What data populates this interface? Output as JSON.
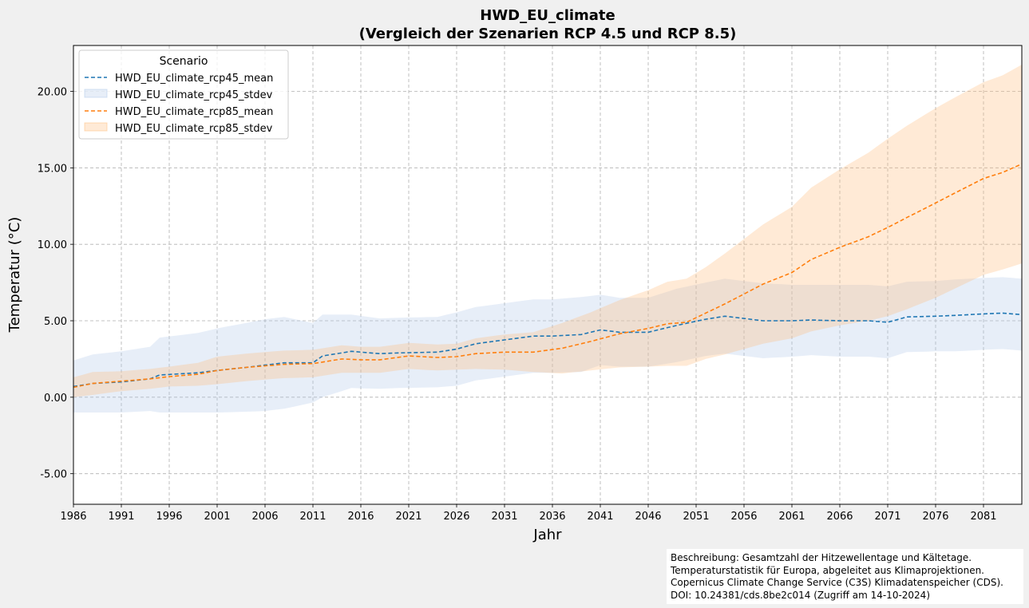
{
  "chart_data": {
    "type": "line",
    "title": "HWD_EU_climate",
    "subtitle": "(Vergleich der Szenarien RCP 4.5 und RCP 8.5)",
    "xlabel": "Jahr",
    "ylabel": "Temperatur (°C)",
    "xlim": [
      1986,
      2085
    ],
    "ylim": [
      -7,
      23
    ],
    "grid": true,
    "x_ticks": [
      1986,
      1991,
      1996,
      2001,
      2006,
      2011,
      2016,
      2021,
      2026,
      2031,
      2036,
      2041,
      2046,
      2051,
      2056,
      2061,
      2066,
      2071,
      2076,
      2081
    ],
    "y_ticks": [
      -5,
      0,
      5,
      10,
      15,
      20
    ],
    "y_tick_labels": [
      "-5.00",
      "0.00",
      "5.00",
      "10.00",
      "15.00",
      "20.00"
    ],
    "legend": {
      "title": "Scenario",
      "position": "upper-left",
      "entries": [
        "HWD_EU_climate_rcp45_mean",
        "HWD_EU_climate_rcp45_stdev",
        "HWD_EU_climate_rcp85_mean",
        "HWD_EU_climate_rcp85_stdev"
      ]
    },
    "series": [
      {
        "name": "HWD_EU_climate_rcp45",
        "color": "#1f77b4",
        "band_color": "#aec7e8",
        "knots": [
          [
            1986,
            0.7,
            1.7
          ],
          [
            1988,
            0.9,
            1.9
          ],
          [
            1991,
            1.0,
            2.0
          ],
          [
            1994,
            1.2,
            2.1
          ],
          [
            1995,
            1.45,
            2.45
          ],
          [
            1999,
            1.6,
            2.6
          ],
          [
            2001,
            1.75,
            2.75
          ],
          [
            2004,
            1.95,
            2.9
          ],
          [
            2006,
            2.1,
            3.0
          ],
          [
            2008,
            2.25,
            3.0
          ],
          [
            2011,
            2.25,
            2.6
          ],
          [
            2012,
            2.7,
            2.7
          ],
          [
            2015,
            3.0,
            2.4
          ],
          [
            2018,
            2.85,
            2.3
          ],
          [
            2020,
            2.9,
            2.3
          ],
          [
            2024,
            2.95,
            2.3
          ],
          [
            2026,
            3.15,
            2.4
          ],
          [
            2028,
            3.5,
            2.4
          ],
          [
            2031,
            3.75,
            2.4
          ],
          [
            2034,
            4.0,
            2.4
          ],
          [
            2036,
            4.0,
            2.4
          ],
          [
            2039,
            4.1,
            2.45
          ],
          [
            2041,
            4.4,
            2.3
          ],
          [
            2043,
            4.25,
            2.25
          ],
          [
            2046,
            4.25,
            2.25
          ],
          [
            2049,
            4.7,
            2.4
          ],
          [
            2052,
            5.1,
            2.4
          ],
          [
            2054,
            5.3,
            2.45
          ],
          [
            2056,
            5.15,
            2.45
          ],
          [
            2058,
            5.0,
            2.45
          ],
          [
            2061,
            5.0,
            2.35
          ],
          [
            2063,
            5.05,
            2.3
          ],
          [
            2066,
            5.0,
            2.35
          ],
          [
            2069,
            5.0,
            2.35
          ],
          [
            2071,
            4.9,
            2.35
          ],
          [
            2073,
            5.25,
            2.3
          ],
          [
            2076,
            5.3,
            2.3
          ],
          [
            2078,
            5.35,
            2.35
          ],
          [
            2081,
            5.45,
            2.35
          ],
          [
            2083,
            5.5,
            2.35
          ],
          [
            2085,
            5.4,
            2.35
          ]
        ]
      },
      {
        "name": "HWD_EU_climate_rcp85",
        "color": "#ff7f0e",
        "band_color": "#ffbb78",
        "knots": [
          [
            1986,
            0.65,
            0.65
          ],
          [
            1988,
            0.9,
            0.75
          ],
          [
            1991,
            1.05,
            0.65
          ],
          [
            1994,
            1.2,
            0.65
          ],
          [
            1996,
            1.35,
            0.65
          ],
          [
            1999,
            1.5,
            0.75
          ],
          [
            2001,
            1.75,
            0.9
          ],
          [
            2004,
            1.95,
            0.9
          ],
          [
            2006,
            2.05,
            0.9
          ],
          [
            2008,
            2.15,
            0.9
          ],
          [
            2011,
            2.2,
            0.9
          ],
          [
            2014,
            2.5,
            0.9
          ],
          [
            2016,
            2.45,
            0.85
          ],
          [
            2018,
            2.45,
            0.85
          ],
          [
            2021,
            2.7,
            0.85
          ],
          [
            2024,
            2.6,
            0.85
          ],
          [
            2026,
            2.65,
            0.85
          ],
          [
            2028,
            2.85,
            1.0
          ],
          [
            2031,
            2.95,
            1.15
          ],
          [
            2034,
            2.95,
            1.3
          ],
          [
            2037,
            3.2,
            1.65
          ],
          [
            2040,
            3.65,
            1.9
          ],
          [
            2043,
            4.15,
            2.2
          ],
          [
            2046,
            4.5,
            2.5
          ],
          [
            2048,
            4.8,
            2.75
          ],
          [
            2050,
            4.9,
            2.85
          ],
          [
            2052,
            5.5,
            3.0
          ],
          [
            2054,
            6.1,
            3.3
          ],
          [
            2056,
            6.75,
            3.6
          ],
          [
            2058,
            7.4,
            3.9
          ],
          [
            2061,
            8.15,
            4.3
          ],
          [
            2063,
            9.0,
            4.7
          ],
          [
            2066,
            9.8,
            5.1
          ],
          [
            2069,
            10.5,
            5.5
          ],
          [
            2071,
            11.1,
            5.8
          ],
          [
            2073,
            11.75,
            6.0
          ],
          [
            2076,
            12.7,
            6.2
          ],
          [
            2078,
            13.35,
            6.25
          ],
          [
            2081,
            14.3,
            6.3
          ],
          [
            2083,
            14.7,
            6.35
          ],
          [
            2085,
            15.25,
            6.5
          ]
        ]
      }
    ]
  },
  "description": {
    "lines": [
      "Beschreibung: Gesamtzahl der Hitzewellentage und Kältetage.",
      "Temperaturstatistik für Europa, abgeleitet aus Klimaprojektionen.",
      "Copernicus Climate Change Service (C3S) Klimadatenspeicher (CDS).",
      "DOI: 10.24381/cds.8be2c014 (Zugriff am 14-10-2024)"
    ]
  }
}
